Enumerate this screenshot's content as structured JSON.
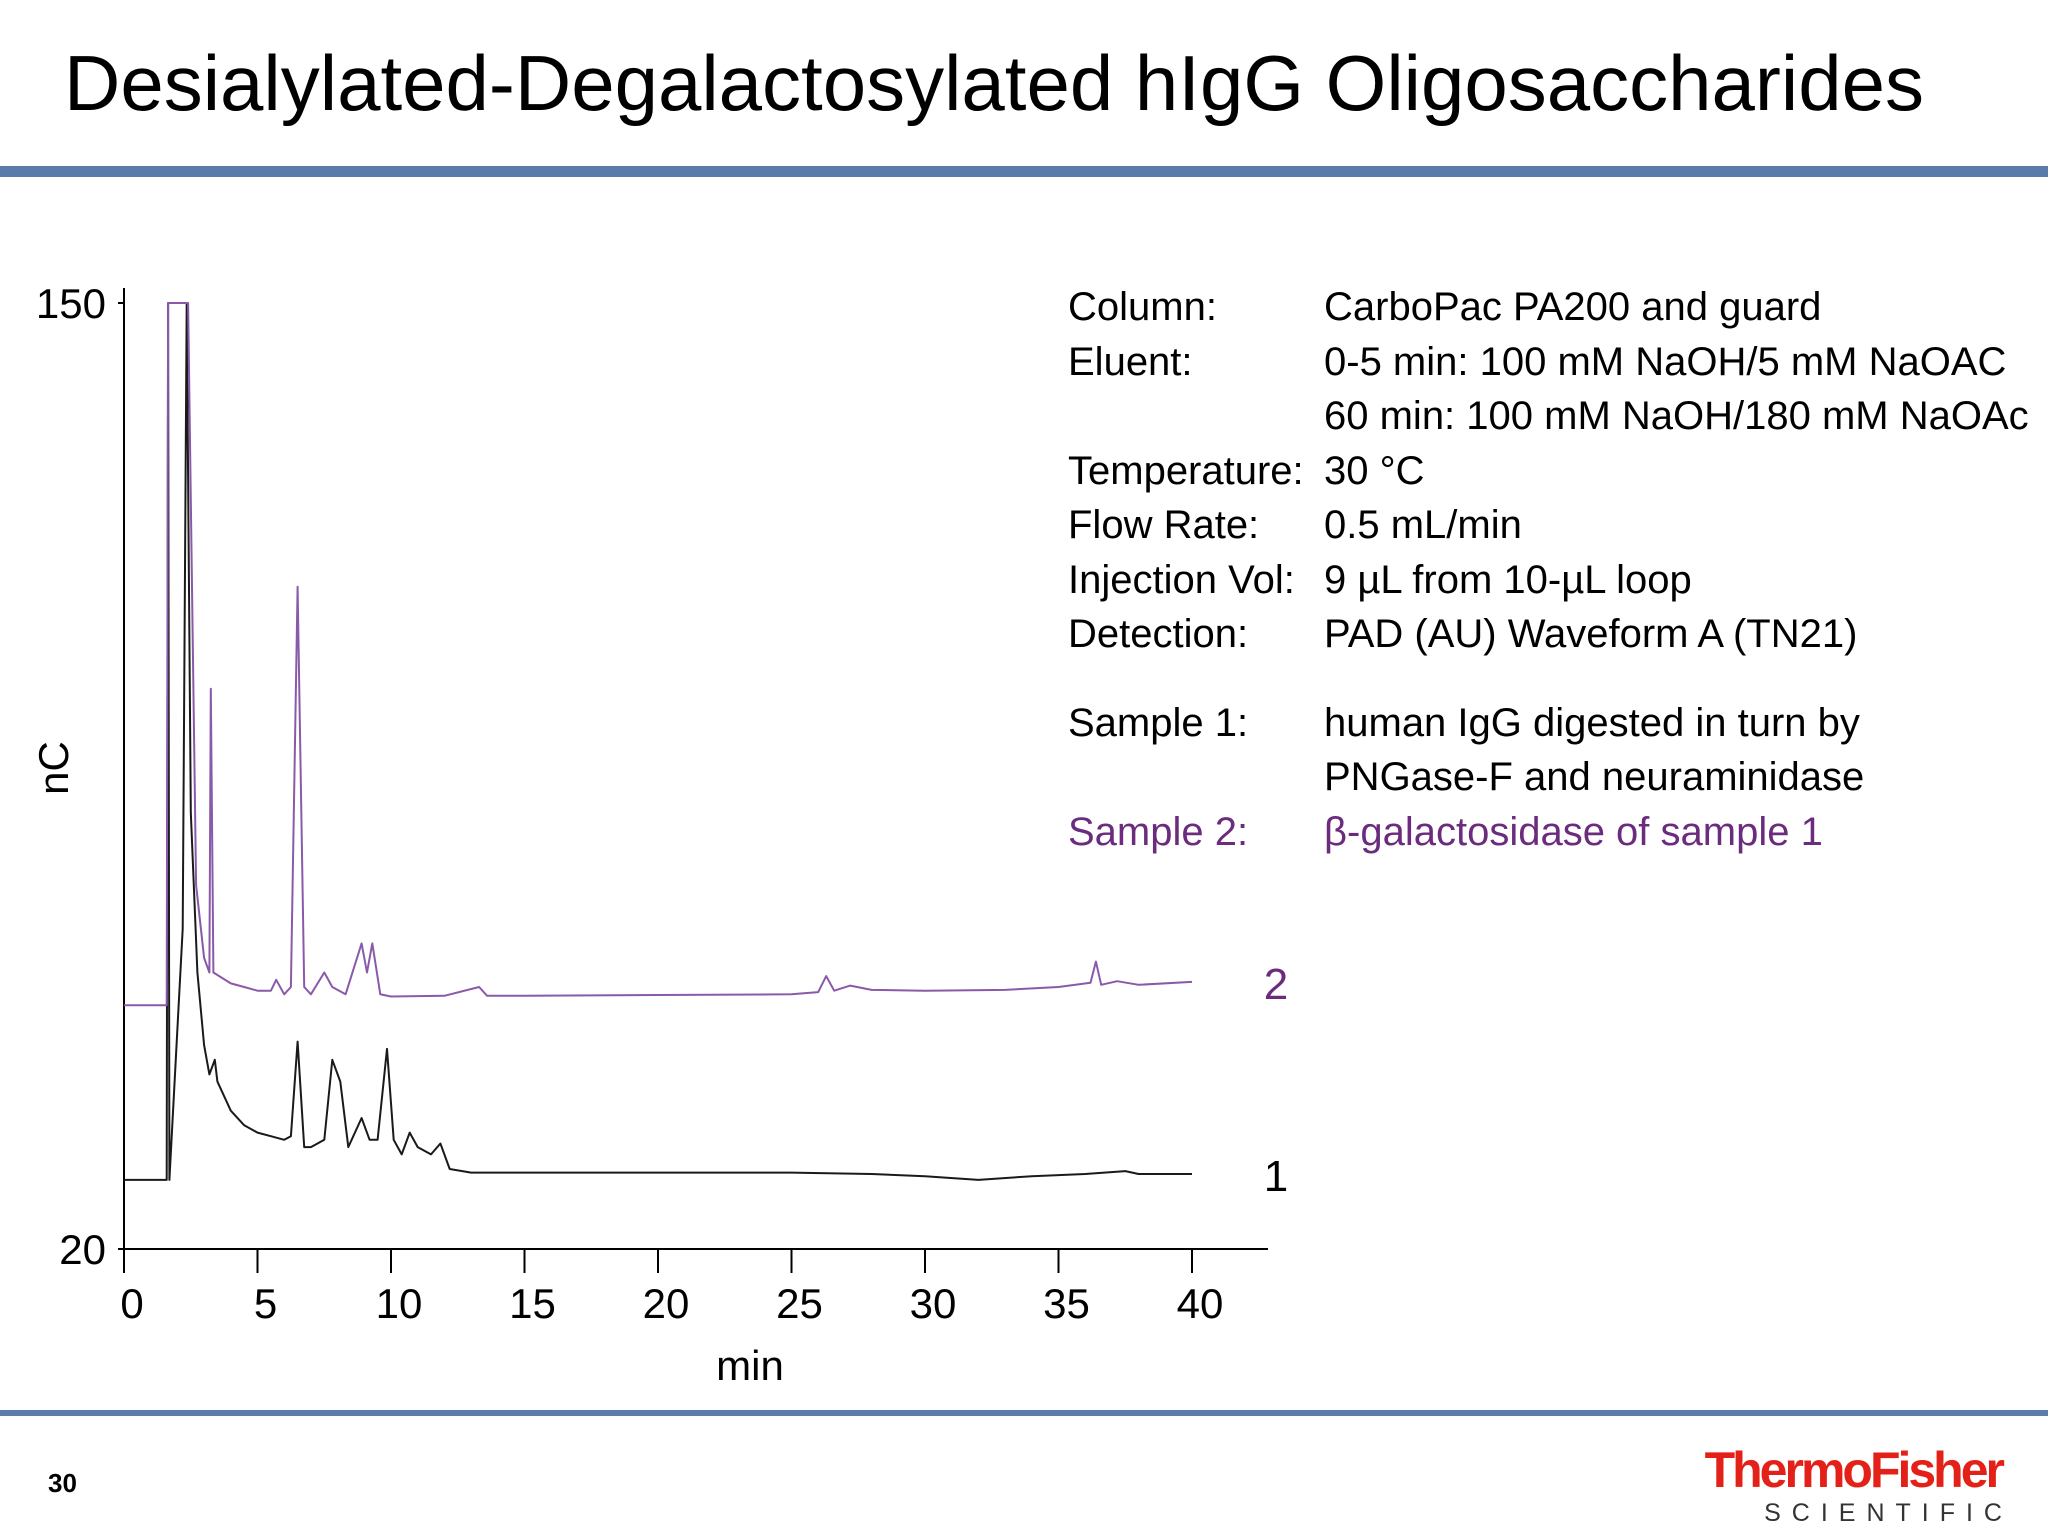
{
  "slide": {
    "title": "Desialylated-Degalactosylated hIgG Oligosaccharides",
    "page_number": "30",
    "logo": {
      "name": "ThermoFisher",
      "sub": "SCIENTIFIC"
    }
  },
  "conditions": {
    "rows": [
      {
        "label": "Column:",
        "value": "CarboPac PA200 and guard"
      },
      {
        "label": "Eluent:",
        "value": "0-5 min: 100 mM NaOH/5 mM NaOAC"
      },
      {
        "label": "",
        "value": "60 min: 100 mM NaOH/180 mM NaOAc"
      },
      {
        "label": "Temperature:",
        "value": "30 °C"
      },
      {
        "label": "Flow Rate:",
        "value": "0.5 mL/min"
      },
      {
        "label": "Injection Vol:",
        "value": "9 µL from 10-µL loop"
      },
      {
        "label": "Detection:",
        "value": "PAD (AU) Waveform A (TN21)"
      }
    ],
    "samples": [
      {
        "label": "Sample 1:",
        "value": "human IgG digested in turn by"
      },
      {
        "label": "",
        "value": "PNGase-F and neuraminidase"
      },
      {
        "label": "Sample 2:",
        "value": "β-galactosidase of sample 1"
      }
    ]
  },
  "colors": {
    "trace1": "#1a1a1a",
    "trace2": "#8a5aa8",
    "sample2_text": "#6b2c7e",
    "rule": "#5a7ca8",
    "logo": "#e32119"
  },
  "chart_data": {
    "type": "line",
    "title": "",
    "xlabel": "min",
    "ylabel": "nC",
    "xlim": [
      0,
      40
    ],
    "ylim": [
      20,
      150
    ],
    "x_ticks": [
      "0",
      "5",
      "10",
      "15",
      "20",
      "25",
      "30",
      "35",
      "40"
    ],
    "y_ticks": [
      "20",
      "150"
    ],
    "grid": false,
    "legend": "trace labels at right end of each trace",
    "series": [
      {
        "name": "1",
        "color": "#1a1a1a",
        "points": [
          [
            0,
            29.5
          ],
          [
            1.6,
            29.5
          ],
          [
            1.65,
            150
          ],
          [
            1.7,
            29.5
          ],
          [
            2.2,
            64
          ],
          [
            2.35,
            150
          ],
          [
            2.5,
            80
          ],
          [
            2.75,
            58
          ],
          [
            3,
            48
          ],
          [
            3.2,
            44
          ],
          [
            3.4,
            46
          ],
          [
            3.5,
            43
          ],
          [
            4,
            39
          ],
          [
            4.5,
            37
          ],
          [
            5,
            36
          ],
          [
            5.5,
            35.5
          ],
          [
            6,
            35
          ],
          [
            6.25,
            35.5
          ],
          [
            6.5,
            48.5
          ],
          [
            6.75,
            34
          ],
          [
            7,
            34
          ],
          [
            7.5,
            35
          ],
          [
            7.8,
            46
          ],
          [
            8.1,
            43
          ],
          [
            8.4,
            34
          ],
          [
            8.9,
            38
          ],
          [
            9.2,
            35
          ],
          [
            9.5,
            35
          ],
          [
            9.85,
            47.5
          ],
          [
            10.1,
            35
          ],
          [
            10.4,
            33
          ],
          [
            10.7,
            36
          ],
          [
            11,
            34
          ],
          [
            11.5,
            33
          ],
          [
            11.85,
            34.5
          ],
          [
            12.2,
            31
          ],
          [
            13,
            30.5
          ],
          [
            15,
            30.5
          ],
          [
            20,
            30.5
          ],
          [
            25,
            30.5
          ],
          [
            28,
            30.3
          ],
          [
            30,
            30
          ],
          [
            32,
            29.5
          ],
          [
            34,
            30
          ],
          [
            36,
            30.3
          ],
          [
            37.5,
            30.7
          ],
          [
            38,
            30.3
          ],
          [
            40,
            30.3
          ]
        ]
      },
      {
        "name": "2",
        "color": "#8a5aa8",
        "points": [
          [
            0,
            53.5
          ],
          [
            1.6,
            53.5
          ],
          [
            1.65,
            150
          ],
          [
            2.4,
            150
          ],
          [
            2.55,
            110
          ],
          [
            2.7,
            70
          ],
          [
            3,
            60
          ],
          [
            3.2,
            58
          ],
          [
            3.25,
            97
          ],
          [
            3.35,
            58
          ],
          [
            4,
            56.5
          ],
          [
            4.5,
            56
          ],
          [
            5,
            55.5
          ],
          [
            5.5,
            55.5
          ],
          [
            5.7,
            57
          ],
          [
            6,
            55
          ],
          [
            6.25,
            56
          ],
          [
            6.5,
            111
          ],
          [
            6.75,
            56
          ],
          [
            7,
            55
          ],
          [
            7.5,
            58
          ],
          [
            7.8,
            56
          ],
          [
            8.3,
            55
          ],
          [
            8.9,
            62
          ],
          [
            9.1,
            58
          ],
          [
            9.3,
            62
          ],
          [
            9.6,
            55
          ],
          [
            10,
            54.7
          ],
          [
            12,
            54.8
          ],
          [
            13.3,
            56
          ],
          [
            13.6,
            54.8
          ],
          [
            15,
            54.8
          ],
          [
            20,
            54.9
          ],
          [
            25,
            55
          ],
          [
            26,
            55.3
          ],
          [
            26.3,
            57.5
          ],
          [
            26.6,
            55.5
          ],
          [
            27.2,
            56.2
          ],
          [
            28,
            55.6
          ],
          [
            30,
            55.5
          ],
          [
            33,
            55.6
          ],
          [
            35,
            56
          ],
          [
            36.2,
            56.6
          ],
          [
            36.4,
            59.5
          ],
          [
            36.6,
            56.3
          ],
          [
            37.2,
            56.8
          ],
          [
            38,
            56.3
          ],
          [
            40,
            56.7
          ]
        ]
      }
    ]
  }
}
